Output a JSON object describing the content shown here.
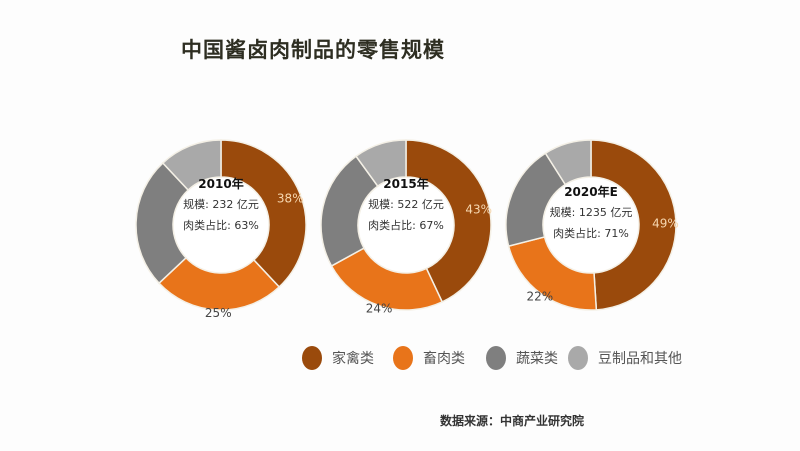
{
  "title": "中国酱卤肉制品的零售规模",
  "source": "数据来源：中商产业研究院",
  "colors": {
    "家禽类": "#9a4a0c",
    "畜肉类": "#e8741a",
    "蔬菜类": "#7f7f7f",
    "豆制品和其他": "#a9a9a9"
  },
  "chart_data": [
    {
      "type": "pie",
      "variant": "donut",
      "title": "2010年",
      "scale_label": "规模: 232 亿元",
      "meat_share_label": "肉类占比: 63%",
      "categories": [
        "家禽类",
        "畜肉类",
        "蔬菜类",
        "豆制品和其他"
      ],
      "values": [
        38,
        25,
        25,
        12
      ],
      "labels": [
        "38%",
        "25%",
        "",
        ""
      ]
    },
    {
      "type": "pie",
      "variant": "donut",
      "title": "2015年",
      "scale_label": "规模: 522 亿元",
      "meat_share_label": "肉类占比: 67%",
      "categories": [
        "家禽类",
        "畜肉类",
        "蔬菜类",
        "豆制品和其他"
      ],
      "values": [
        43,
        24,
        23,
        10
      ],
      "labels": [
        "43%",
        "24%",
        "",
        ""
      ]
    },
    {
      "type": "pie",
      "variant": "donut",
      "title": "2020年E",
      "scale_label": "规模: 1235 亿元",
      "meat_share_label": "肉类占比: 71%",
      "categories": [
        "家禽类",
        "畜肉类",
        "蔬菜类",
        "豆制品和其他"
      ],
      "values": [
        49,
        22,
        20,
        9
      ],
      "labels": [
        "49%",
        "22%",
        "",
        ""
      ]
    }
  ],
  "legend": [
    "家禽类",
    "畜肉类",
    "蔬菜类",
    "豆制品和其他"
  ]
}
